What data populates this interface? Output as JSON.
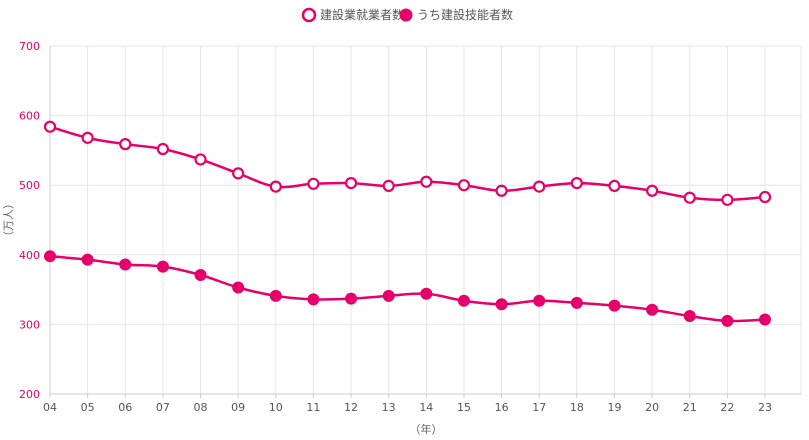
{
  "chart_data": {
    "type": "line",
    "xlabel": "（年）",
    "ylabel": "（万人）",
    "ylim": [
      200,
      700
    ],
    "yticks": [
      "200",
      "300",
      "400",
      "500",
      "600",
      "700"
    ],
    "categories": [
      "04",
      "05",
      "06",
      "07",
      "08",
      "09",
      "10",
      "11",
      "12",
      "13",
      "14",
      "15",
      "16",
      "17",
      "18",
      "19",
      "20",
      "21",
      "22",
      "23"
    ],
    "grid": true,
    "legend_position": "top-center",
    "series": [
      {
        "name": "建設業就業者数",
        "marker": "hollow-circle",
        "color": "#e5006a",
        "values": [
          584,
          568,
          559,
          552,
          537,
          517,
          498,
          502,
          503,
          499,
          505,
          500,
          492,
          498,
          503,
          499,
          492,
          482,
          479,
          483
        ]
      },
      {
        "name": "うち建設技能者数",
        "marker": "filled-circle",
        "color": "#e5006a",
        "values": [
          398,
          393,
          386,
          383,
          371,
          353,
          341,
          336,
          337,
          341,
          344,
          334,
          329,
          334,
          331,
          327,
          321,
          312,
          305,
          307
        ]
      }
    ]
  }
}
